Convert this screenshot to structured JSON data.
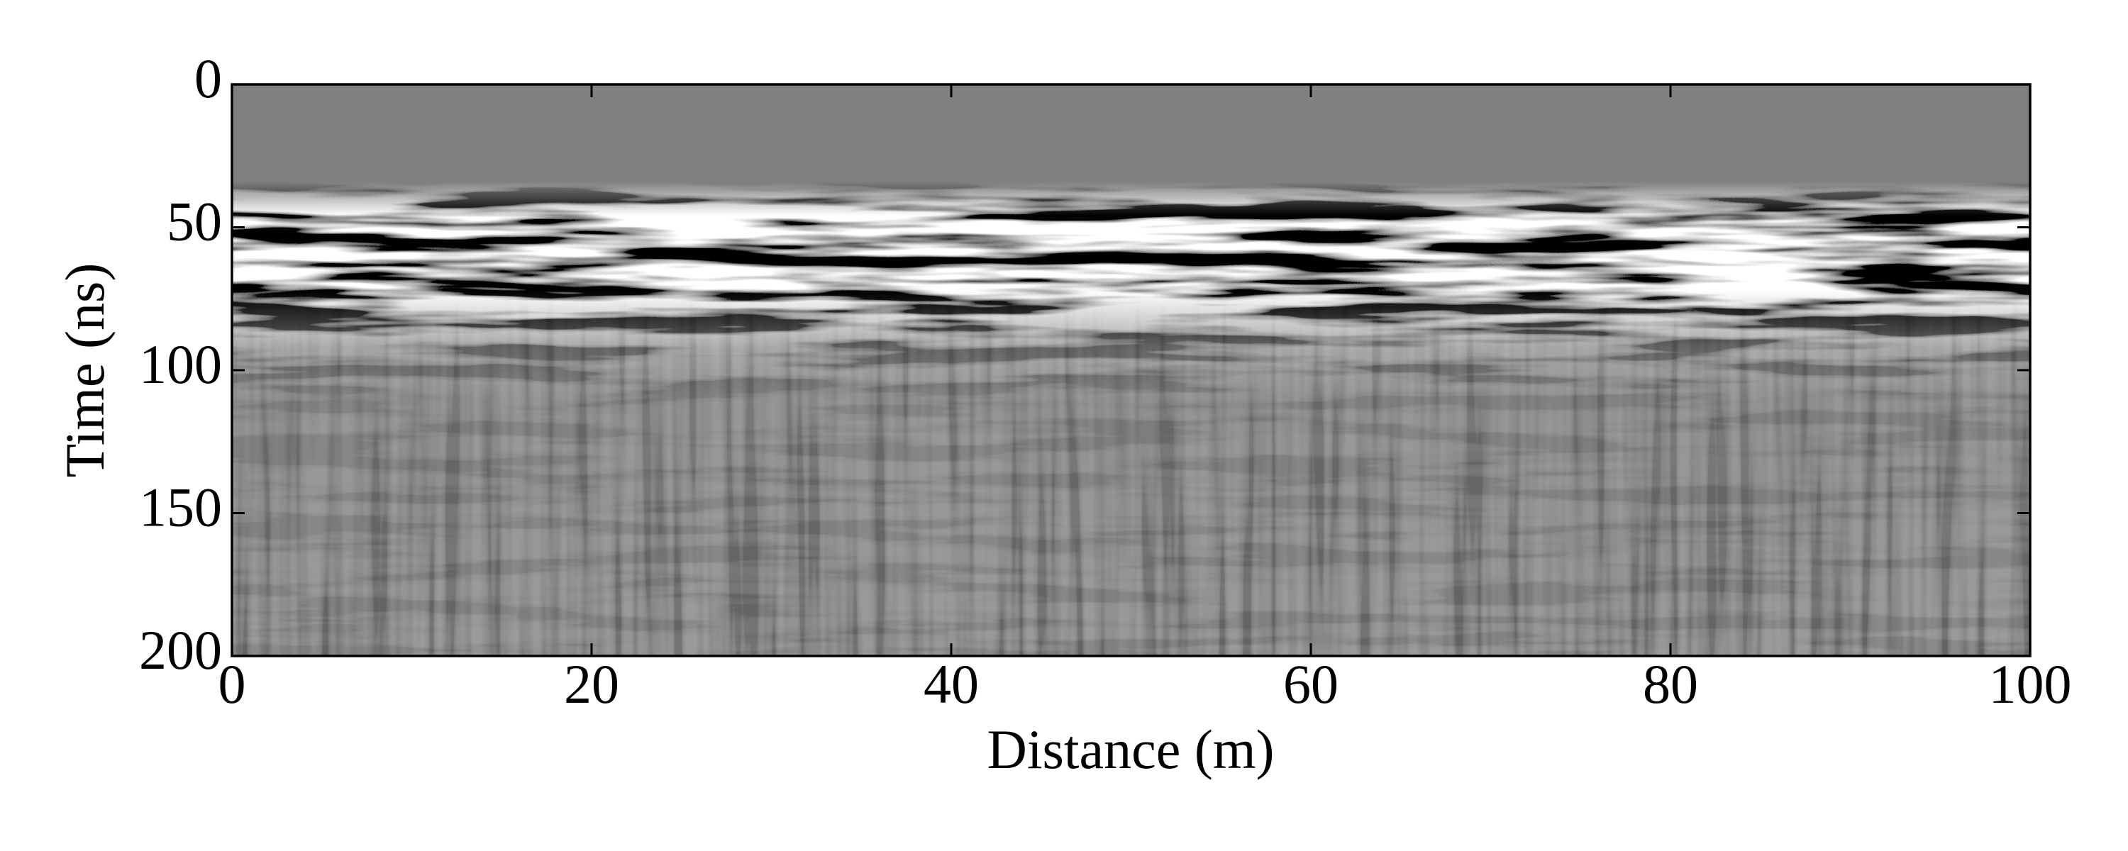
{
  "chart_data": {
    "type": "image",
    "xlabel": "Distance (m)",
    "ylabel": "Time (ns)",
    "xlim": [
      0,
      100
    ],
    "ylim": [
      200,
      0
    ],
    "xticks": [
      0,
      20,
      40,
      60,
      80,
      100
    ],
    "yticks": [
      0,
      50,
      100,
      150,
      200
    ]
  }
}
